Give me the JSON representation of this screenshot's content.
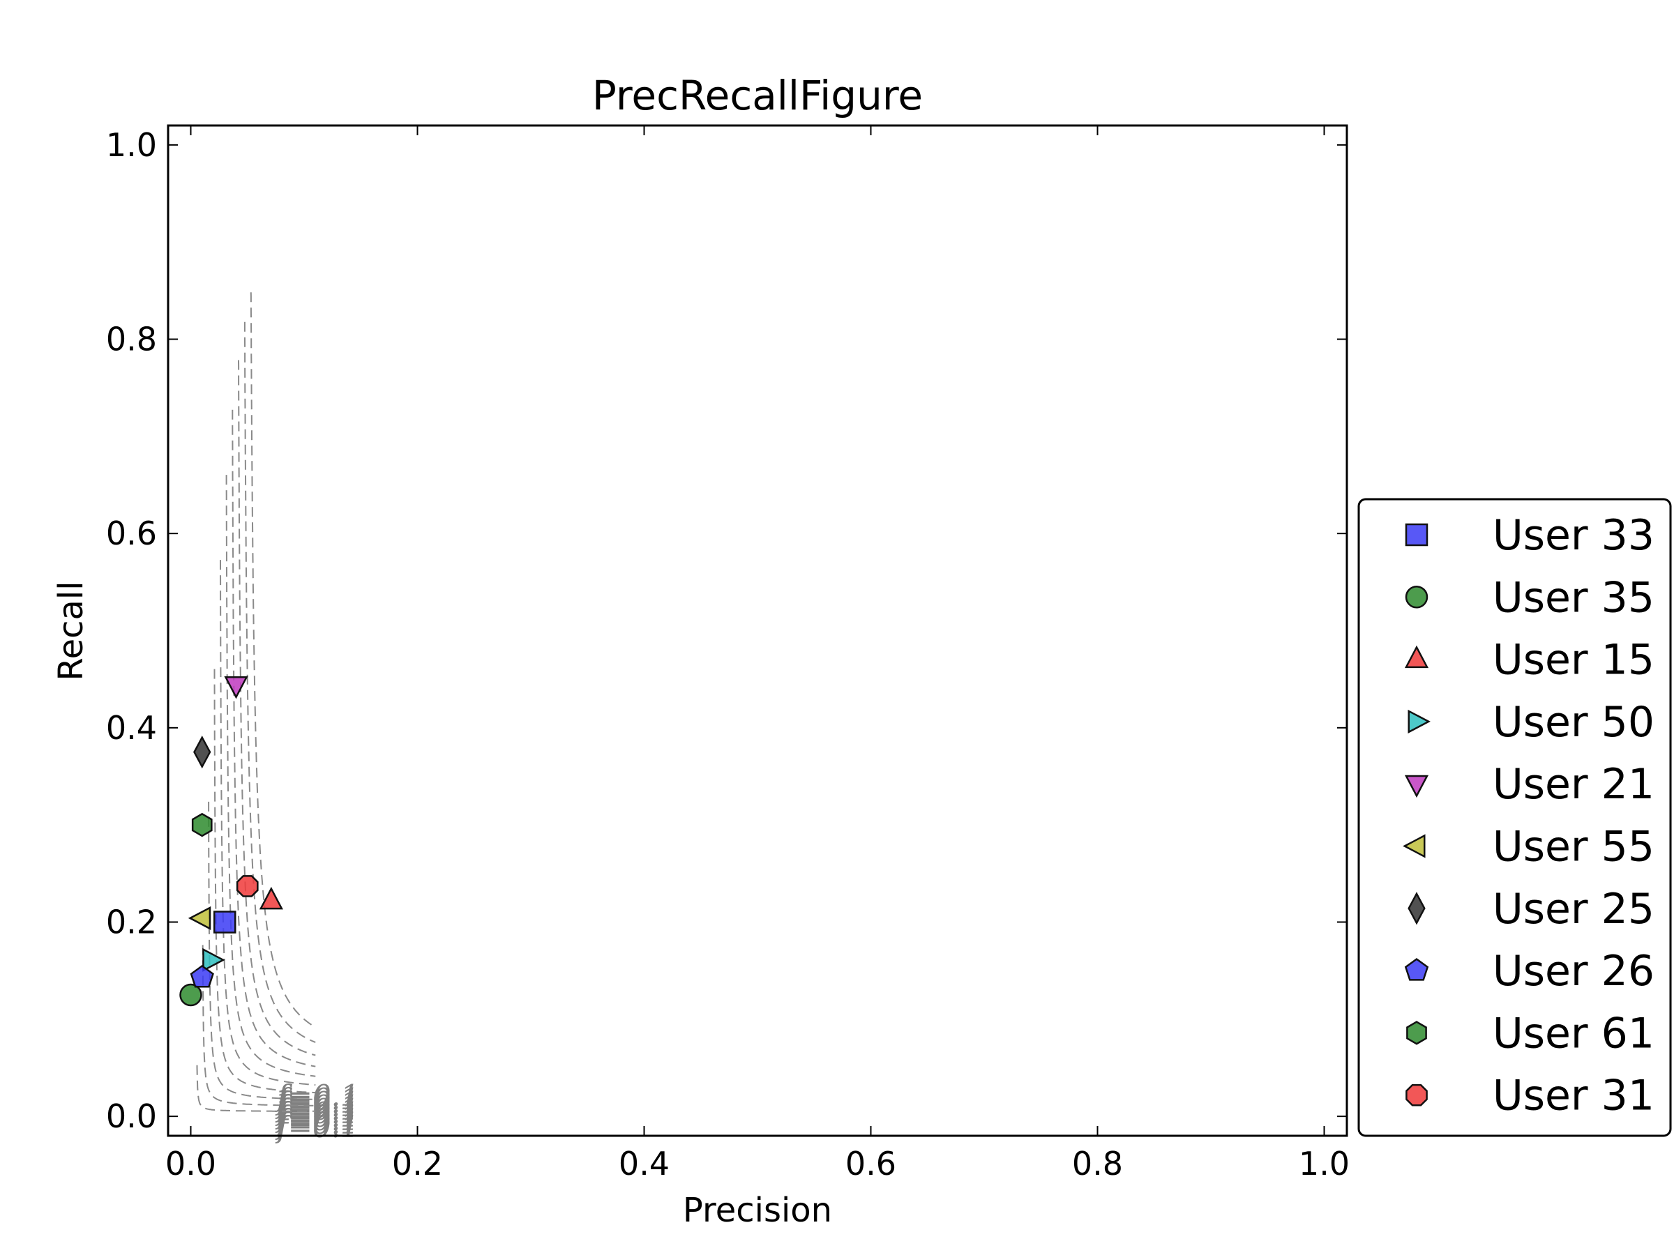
{
  "chart_data": {
    "type": "scatter",
    "title": "PrecRecallFigure",
    "xlabel": "Precision",
    "ylabel": "Recall",
    "xlim": [
      -0.02,
      1.02
    ],
    "ylim": [
      -0.02,
      1.02
    ],
    "x_ticks": [
      "0.0",
      "0.2",
      "0.4",
      "0.6",
      "0.8",
      "1.0"
    ],
    "y_ticks": [
      "0.0",
      "0.2",
      "0.4",
      "0.6",
      "0.8",
      "1.0"
    ],
    "x_tick_values": [
      0,
      0.2,
      0.4,
      0.6,
      0.8,
      1.0
    ],
    "y_tick_values": [
      0,
      0.2,
      0.4,
      0.6,
      0.8,
      1.0
    ],
    "grid": false,
    "legend_position": "outside-right-bottom",
    "f_score_contours": {
      "style": "dashed gray",
      "values": [
        0.1,
        0.09,
        0.08,
        0.07,
        0.06,
        0.05,
        0.04,
        0.03,
        0.02,
        0.01
      ],
      "label": "f=0.1"
    },
    "series": [
      {
        "name": "User 33",
        "marker": "square",
        "color": "#3b3bf5",
        "x": 0.03,
        "y": 0.2
      },
      {
        "name": "User 35",
        "marker": "circle",
        "color": "#2e8b2e",
        "x": 0.0,
        "y": 0.125
      },
      {
        "name": "User 15",
        "marker": "triangle-up",
        "color": "#f03a3a",
        "x": 0.071,
        "y": 0.222
      },
      {
        "name": "User 50",
        "marker": "triangle-right",
        "color": "#2ec0c0",
        "x": 0.018,
        "y": 0.161
      },
      {
        "name": "User 21",
        "marker": "triangle-down",
        "color": "#c03ac0",
        "x": 0.04,
        "y": 0.444
      },
      {
        "name": "User 55",
        "marker": "triangle-left",
        "color": "#c0c03a",
        "x": 0.01,
        "y": 0.204
      },
      {
        "name": "User 25",
        "marker": "diamond",
        "color": "#333333",
        "x": 0.01,
        "y": 0.375
      },
      {
        "name": "User 26",
        "marker": "pentagon",
        "color": "#3b3bf5",
        "x": 0.01,
        "y": 0.143
      },
      {
        "name": "User 61",
        "marker": "hexagon",
        "color": "#2e8b2e",
        "x": 0.01,
        "y": 0.3
      },
      {
        "name": "User 31",
        "marker": "octagon",
        "color": "#f03a3a",
        "x": 0.05,
        "y": 0.237
      }
    ]
  }
}
